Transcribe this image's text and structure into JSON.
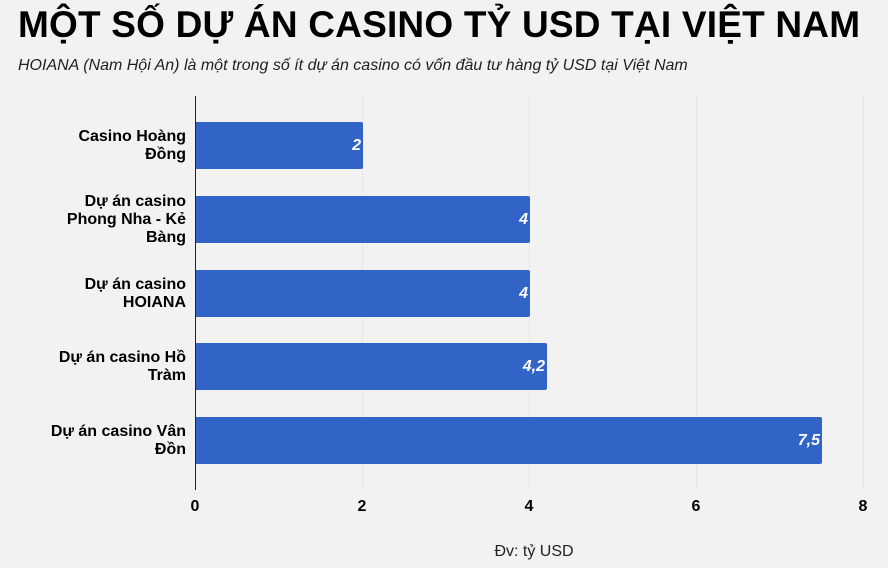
{
  "header": {
    "title": "MỘT SỐ DỰ ÁN CASINO TỶ USD TẠI VIỆT NAM",
    "subtitle": "HOIANA (Nam Hội An) là một trong số ít dự án casino có vốn đầu tư hàng tỷ USD tại Việt Nam"
  },
  "colors": {
    "bar": "#3264c8",
    "background": "#f2f2f2"
  },
  "chart_data": {
    "type": "bar",
    "orientation": "horizontal",
    "title": "MỘT SỐ DỰ ÁN CASINO TỶ USD TẠI VIỆT NAM",
    "subtitle": "HOIANA (Nam Hội An) là một trong số ít dự án casino có vốn đầu tư hàng tỷ USD tại Việt Nam",
    "categories": [
      "Casino Hoàng Đồng",
      "Dự án casino Phong Nha - Kẻ Bàng",
      "Dự án casino HOIANA",
      "Dự án casino Hồ Tràm",
      "Dự án casino Vân Đồn"
    ],
    "values": [
      2,
      4,
      4,
      4.2,
      7.5
    ],
    "value_labels": [
      "2",
      "4",
      "4",
      "4,2",
      "7,5"
    ],
    "xlabel": "Đv: tỷ USD",
    "ylabel": "",
    "xlim": [
      0,
      8
    ],
    "x_ticks": [
      "0",
      "2",
      "4",
      "6",
      "8"
    ],
    "grid": true,
    "legend": null
  },
  "labels_wrapped": [
    [
      "Casino Hoàng",
      "Đồng"
    ],
    [
      "Dự án casino",
      "Phong Nha - Kẻ",
      "Bàng"
    ],
    [
      "Dự án casino",
      "HOIANA"
    ],
    [
      "Dự án casino Hồ",
      "Tràm"
    ],
    [
      "Dự án casino Vân",
      "Đồn"
    ]
  ]
}
